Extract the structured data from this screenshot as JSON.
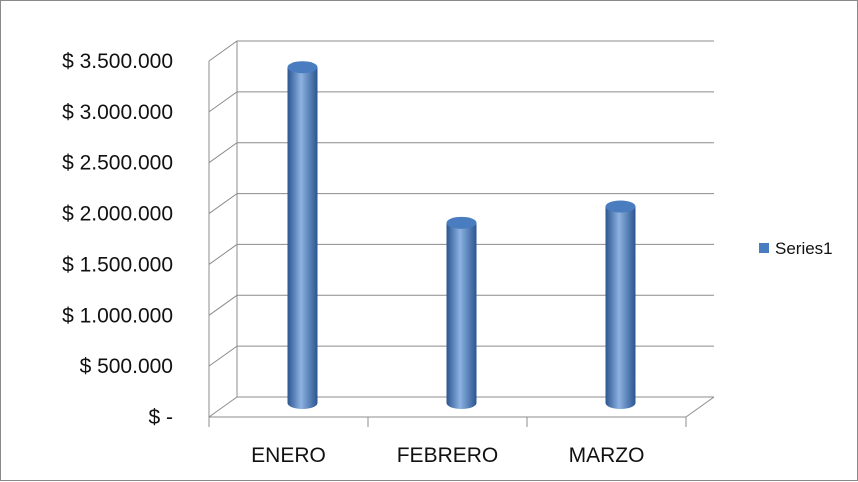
{
  "chart_data": {
    "type": "bar",
    "style": "3d-cylinder",
    "categories": [
      "ENERO",
      "FEBRERO",
      "MARZO"
    ],
    "series": [
      {
        "name": "Series1",
        "values": [
          3380000,
          1850000,
          2010000
        ],
        "color": "#4a7dbf"
      }
    ],
    "ylim": [
      0,
      3500000
    ],
    "yticks": [
      0,
      500000,
      1000000,
      1500000,
      2000000,
      2500000,
      3000000,
      3500000
    ],
    "ytick_labels": [
      "$ -",
      "$ 500.000",
      "$ 1.000.000",
      "$ 1.500.000",
      "$ 2.000.000",
      "$ 2.500.000",
      "$ 3.000.000",
      "$ 3.500.000"
    ],
    "grid": true,
    "legend_position": "right"
  },
  "colors": {
    "bar": "#4a7dbf",
    "bar_dark": "#2b5590",
    "bar_light": "#8db2e2",
    "grid": "#8c8c8c"
  }
}
